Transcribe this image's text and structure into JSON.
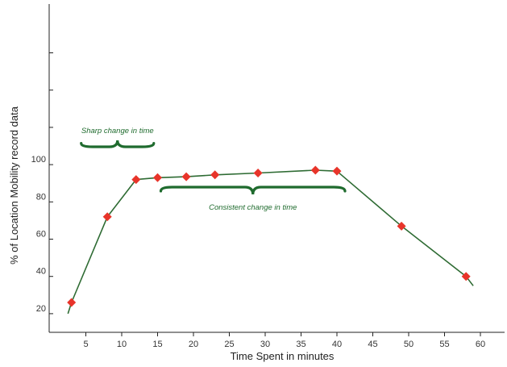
{
  "chart_data": {
    "type": "line",
    "title": "",
    "xlabel": "Time Spent in minutes",
    "ylabel": "% of Location Mobility record data",
    "xlim": [
      0,
      60
    ],
    "ylim": [
      10,
      160
    ],
    "x_ticks": [
      5,
      10,
      15,
      20,
      25,
      30,
      35,
      40,
      45,
      50,
      55,
      60
    ],
    "y_ticks": [
      20,
      40,
      60,
      80,
      100
    ],
    "y_unlabeled_ticks": [
      120,
      140,
      160
    ],
    "series": [
      {
        "x": [
          3,
          8,
          12,
          15,
          19,
          23,
          29,
          37,
          40,
          49,
          58
        ],
        "y": [
          26,
          72,
          92,
          93,
          93.5,
          94.5,
          95.5,
          97,
          96.5,
          67,
          40
        ]
      }
    ],
    "line_start": {
      "x": 2.5,
      "y": 20
    },
    "line_end": {
      "x": 59,
      "y": 35
    },
    "annotations": [
      {
        "text": "Sharp change in time",
        "x_from": 3,
        "x_to": 12
      },
      {
        "text": "Consistent change in time",
        "x_from": 15,
        "x_to": 40
      }
    ],
    "grid": false,
    "legend": "none",
    "colors": {
      "line": "#2e6b33",
      "marker": "#e8342a",
      "annotation": "#1f6b2e",
      "axis": "#222222"
    }
  }
}
